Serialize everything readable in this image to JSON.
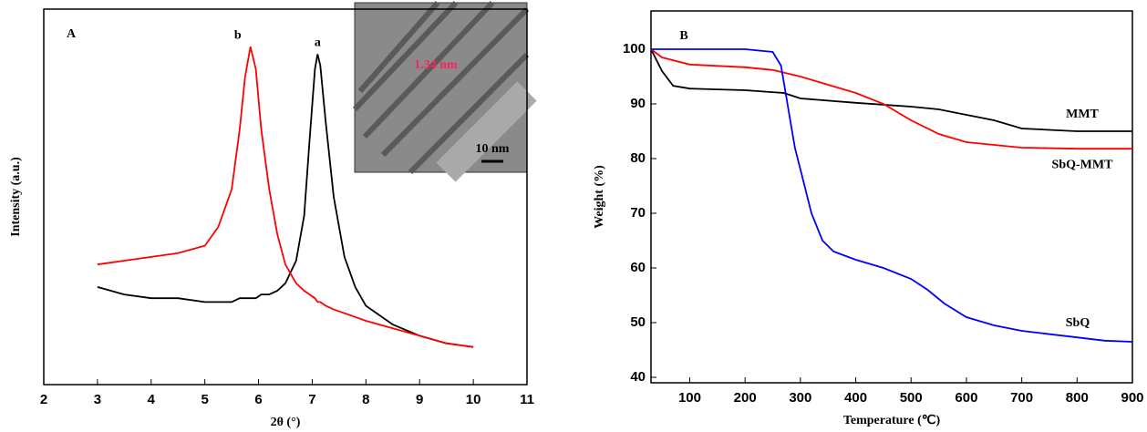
{
  "chart_data": [
    {
      "type": "line",
      "panel": "A",
      "xlabel": "2θ (°)",
      "ylabel": "Intensity (a.u.)",
      "xlim": [
        2,
        11
      ],
      "xticks": [
        2,
        3,
        4,
        5,
        6,
        7,
        8,
        9,
        10,
        11
      ],
      "ylim": [
        0,
        100
      ],
      "x": [
        3,
        3.5,
        4,
        4.5,
        5,
        5.25,
        5.5,
        5.65,
        5.75,
        5.85,
        5.95,
        6.05,
        6.2,
        6.35,
        6.5,
        6.7,
        6.85,
        6.95,
        7.05,
        7.1,
        7.15,
        7.25,
        7.4,
        7.6,
        7.8,
        8,
        8.5,
        9,
        9.5,
        10
      ],
      "series": [
        {
          "name": "a",
          "color": "#000000",
          "values": [
            26,
            24,
            23,
            23,
            22,
            22,
            22,
            23,
            23,
            23,
            23,
            24,
            24,
            25,
            27,
            33,
            45,
            65,
            84,
            88,
            85,
            70,
            50,
            34,
            26,
            21,
            16,
            13,
            11,
            10
          ]
        },
        {
          "name": "b",
          "color": "#ff0000",
          "values": [
            32,
            33,
            34,
            35,
            37,
            42,
            52,
            68,
            82,
            90,
            84,
            68,
            52,
            40,
            32,
            27,
            25,
            24,
            23,
            22,
            22,
            21,
            20,
            19,
            18,
            17,
            15,
            13,
            11,
            10
          ]
        }
      ],
      "inset_labels": [
        "1.34 nm",
        "10 nm"
      ]
    },
    {
      "type": "line",
      "panel": "B",
      "xlabel": "Temperature (℃)",
      "ylabel": "Weight (%)",
      "xlim": [
        30,
        900
      ],
      "xticks": [
        100,
        200,
        300,
        400,
        500,
        600,
        700,
        800,
        900
      ],
      "ylim": [
        39,
        107
      ],
      "yticks": [
        40,
        50,
        60,
        70,
        80,
        90,
        100
      ],
      "series": [
        {
          "name": "MMT",
          "color": "#000000",
          "x": [
            30,
            50,
            70,
            100,
            200,
            270,
            300,
            400,
            500,
            550,
            600,
            650,
            700,
            800,
            900
          ],
          "values": [
            100,
            96,
            93.3,
            92.8,
            92.5,
            92,
            91,
            90.2,
            89.5,
            89,
            88,
            87,
            85.5,
            85,
            85
          ]
        },
        {
          "name": "SbQ-MMT",
          "color": "#ff0000",
          "x": [
            30,
            50,
            100,
            200,
            250,
            300,
            350,
            400,
            450,
            500,
            550,
            600,
            700,
            800,
            900
          ],
          "values": [
            100,
            98.5,
            97.2,
            96.7,
            96.2,
            95,
            93.5,
            92,
            90,
            87,
            84.5,
            83,
            82,
            81.8,
            81.8
          ]
        },
        {
          "name": "SbQ",
          "color": "#0000ff",
          "x": [
            30,
            100,
            200,
            250,
            265,
            280,
            290,
            300,
            320,
            340,
            360,
            400,
            450,
            500,
            530,
            560,
            600,
            650,
            700,
            800,
            850,
            900
          ],
          "values": [
            100,
            100,
            100,
            99.5,
            97,
            88,
            82,
            78,
            70,
            65,
            63,
            61.5,
            60,
            58,
            56,
            53.5,
            51,
            49.5,
            48.5,
            47.3,
            46.7,
            46.5
          ]
        }
      ]
    }
  ]
}
